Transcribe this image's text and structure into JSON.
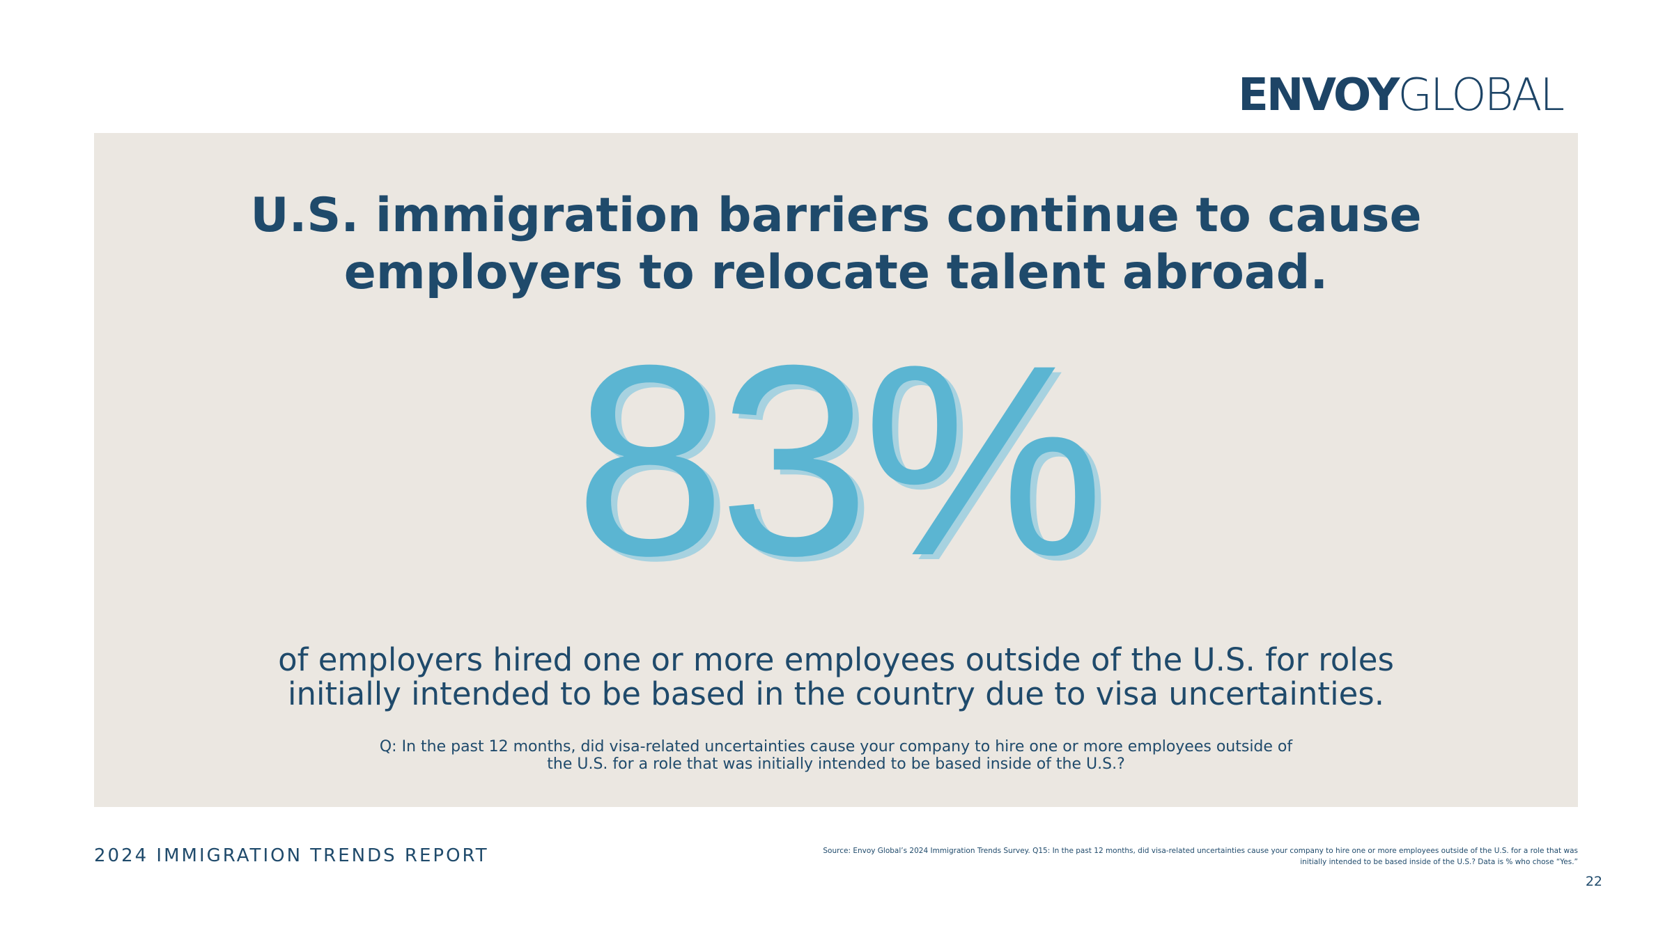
{
  "header": {
    "logo_bold": "ENVOY",
    "logo_light": "GLOBAL"
  },
  "panel": {
    "title_lines": [
      "U.S. immigration barriers continue to cause",
      "employers to relocate talent abroad."
    ],
    "stat": "83%",
    "description_lines": [
      "of employers hired one or more employees outside of the U.S. for roles",
      "initially intended to be based in the country due to visa uncertainties."
    ],
    "question_lines": [
      "Q: In the past 12 months, did visa-related uncertainties cause your company to hire one or more employees outside of",
      "the U.S. for a role that was initially intended to be based inside of the U.S.?"
    ]
  },
  "footer": {
    "report": "2024 IMMIGRATION TRENDS REPORT",
    "source_lines": [
      "Source: Envoy Global’s 2024 Immigration Trends Survey. Q15: In the past 12 months, did visa-related uncertainties cause your company to hire one or more employees outside of the U.S. for a role that was",
      "initially intended to be based inside of the U.S.? Data is % who chose “Yes.”"
    ],
    "page_number": "22"
  }
}
